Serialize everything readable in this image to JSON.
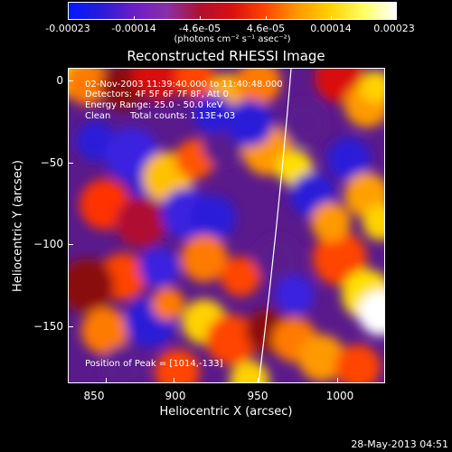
{
  "colorbar": {
    "tick_labels": [
      "-0.00023",
      "-0.00014",
      "-4.6e-05",
      "4.6e-05",
      "0.00014",
      "0.00023"
    ],
    "units": "(photons cm⁻² s⁻¹ asec⁻²)",
    "colors": [
      "#0018ff",
      "#2a1cd8",
      "#6a1ec8",
      "#8a2fa8",
      "#b01030",
      "#d81010",
      "#ff4400",
      "#ff9900",
      "#ffd200",
      "#ffff60",
      "#ffffff"
    ]
  },
  "plot": {
    "title": "Reconstructed RHESSI Image",
    "annotations": {
      "time_range": "02-Nov-2003 11:39:40.000 to 11:40:48.000",
      "detectors": "Detectors: 4F 5F 6F 7F 8F, Att 0",
      "energy_range": "Energy Range: 25.0 - 50.0 keV",
      "algorithm": "Clean",
      "total_counts": "Total counts: 1.13E+03",
      "peak_position": "Position of Peak = [1014,-133]"
    },
    "xlabel": "Heliocentric X (arcsec)",
    "ylabel": "Heliocentric Y (arcsec)",
    "xticks": [
      "850",
      "900",
      "950",
      "1000"
    ],
    "yticks": [
      "0",
      "−50",
      "−100",
      "−150"
    ],
    "limb_color": "#ffffff"
  },
  "footer": {
    "timestamp": "28-May-2013 04:51"
  }
}
